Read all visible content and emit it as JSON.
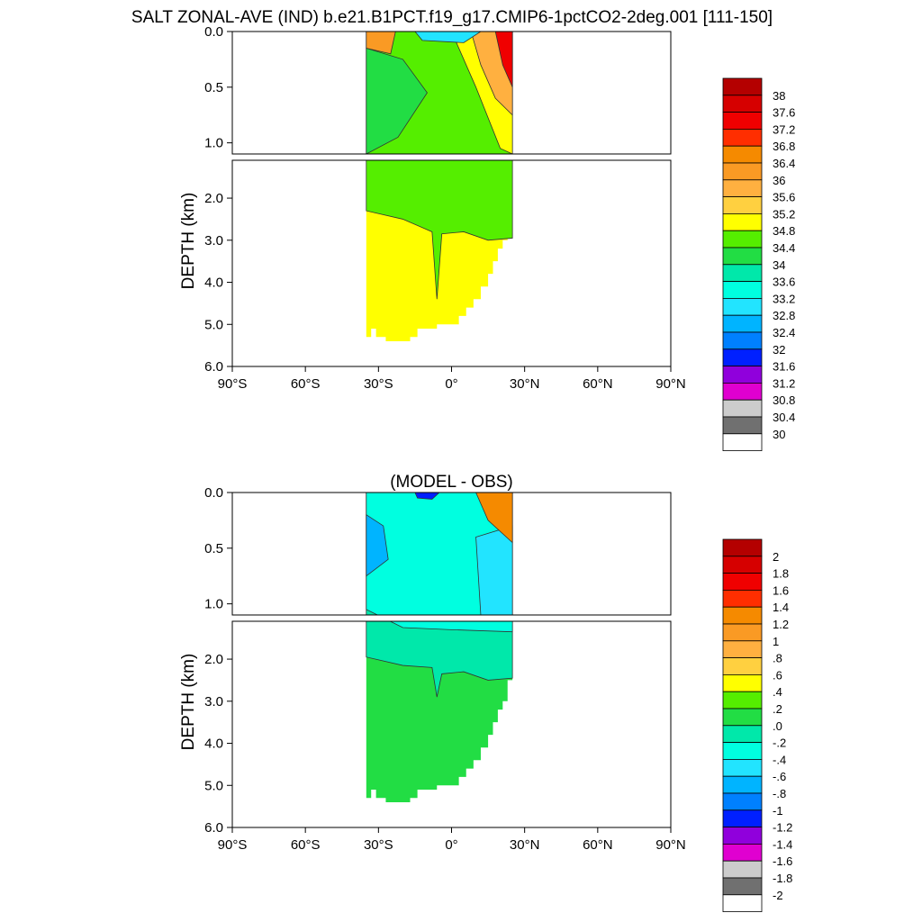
{
  "page": {
    "title": "SALT ZONAL-AVE (IND) b.e21.B1PCT.f19_g17.CMIP6-1pctCO2-2deg.001 [111-150]"
  },
  "chart_data": [
    {
      "type": "heatmap",
      "title": "",
      "ylabel": "DEPTH (km)",
      "xlabel": "",
      "x_ticks": [
        "90°S",
        "60°S",
        "30°S",
        "0°",
        "30°N",
        "60°N",
        "90°N"
      ],
      "x_range": [
        -90,
        90
      ],
      "y_upper_ticks": [
        "0.0",
        "0.5",
        "1.0"
      ],
      "y_upper_range": [
        0,
        1.1
      ],
      "y_lower_ticks": [
        "2.0",
        "3.0",
        "4.0",
        "5.0",
        "6.0"
      ],
      "y_lower_range": [
        1.1,
        6.0
      ],
      "colorbar_labels": [
        "38",
        "37.6",
        "37.2",
        "36.8",
        "36.4",
        "36",
        "35.6",
        "35.2",
        "34.8",
        "34.4",
        "34",
        "33.6",
        "33.2",
        "32.8",
        "32.4",
        "32",
        "31.6",
        "31.2",
        "30.8",
        "30.4",
        "30"
      ],
      "colorbar_colors": [
        "#b40000",
        "#d60000",
        "#f00000",
        "#ff2e00",
        "#f58a00",
        "#fa9a24",
        "#ffb040",
        "#ffd040",
        "#ffff00",
        "#55ee00",
        "#22dd44",
        "#00e8aa",
        "#00ffe0",
        "#22e4ff",
        "#00b4ff",
        "#0080ff",
        "#0020ff",
        "#9000dc",
        "#e000d0",
        "#cccccc",
        "#707070",
        "#ffffff"
      ],
      "regions": [
        {
          "name": "deep-salinity",
          "value": 34.9,
          "color": "#ffff00"
        },
        {
          "name": "intermediate-salinity",
          "value": 34.6,
          "color": "#55ee00"
        },
        {
          "name": "thermocline-salinity",
          "value": 34.2,
          "color": "#22dd44"
        },
        {
          "name": "north-surface-salinity",
          "value": 36.0,
          "color": "#ffb040"
        },
        {
          "name": "arabian-sea-max",
          "value": 37.5,
          "color": "#f00000"
        }
      ]
    },
    {
      "type": "heatmap",
      "title": "(MODEL - OBS)",
      "ylabel": "DEPTH (km)",
      "xlabel": "",
      "x_ticks": [
        "90°S",
        "60°S",
        "30°S",
        "0°",
        "30°N",
        "60°N",
        "90°N"
      ],
      "x_range": [
        -90,
        90
      ],
      "y_upper_ticks": [
        "0.0",
        "0.5",
        "1.0"
      ],
      "y_upper_range": [
        0,
        1.1
      ],
      "y_lower_ticks": [
        "2.0",
        "3.0",
        "4.0",
        "5.0",
        "6.0"
      ],
      "y_lower_range": [
        1.1,
        6.0
      ],
      "colorbar_labels": [
        "2",
        "1.8",
        "1.6",
        "1.4",
        "1.2",
        "1",
        ".8",
        ".6",
        ".4",
        ".2",
        ".0",
        "-.2",
        "-.4",
        "-.6",
        "-.8",
        "-1",
        "-1.2",
        "-1.4",
        "-1.6",
        "-1.8",
        "-2"
      ],
      "colorbar_colors": [
        "#b40000",
        "#d60000",
        "#f00000",
        "#ff2e00",
        "#f58a00",
        "#fa9a24",
        "#ffb040",
        "#ffd040",
        "#ffff00",
        "#55ee00",
        "#22dd44",
        "#00e8aa",
        "#00ffe0",
        "#22e4ff",
        "#00b4ff",
        "#0080ff",
        "#0020ff",
        "#9000dc",
        "#e000d0",
        "#cccccc",
        "#707070",
        "#ffffff"
      ],
      "regions": [
        {
          "name": "deep-difference",
          "value": 0.1,
          "color": "#22dd44"
        },
        {
          "name": "intermediate-difference",
          "value": -0.1,
          "color": "#00e8aa"
        },
        {
          "name": "upper-difference",
          "value": -0.3,
          "color": "#00ffe0"
        },
        {
          "name": "southern-fresh-bias",
          "value": -0.7,
          "color": "#00b4ff"
        },
        {
          "name": "northern-salty-bias",
          "value": 1.2,
          "color": "#f58a00"
        }
      ]
    }
  ]
}
